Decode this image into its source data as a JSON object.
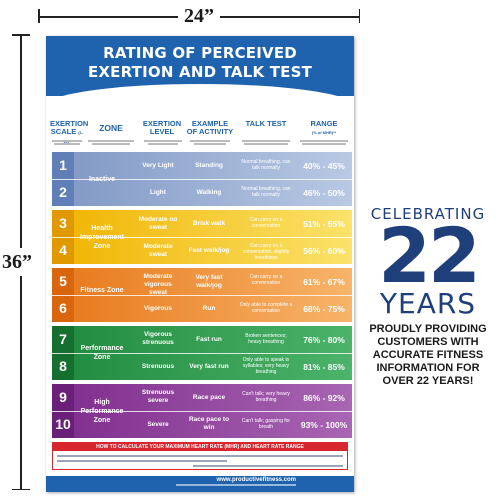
{
  "dimensions": {
    "width_label": "24”",
    "height_label": "36”"
  },
  "poster": {
    "title_line1": "RATING OF PERCEIVED",
    "title_line2": "EXERTION AND TALK TEST",
    "columns": {
      "scale": "EXERTION SCALE",
      "scale_note": "(1-10)*",
      "zone": "ZONE",
      "level": "EXERTION LEVEL",
      "activity": "EXAMPLE OF ACTIVITY",
      "talk": "TALK TEST",
      "range": "RANGE",
      "range_note": "(% of MHR)**"
    },
    "colors": {
      "inactive": "#8ea7cf",
      "health": "#f2c418",
      "fitness": "#ee8a22",
      "performance": "#2a9a4a",
      "high": "#8b3a96",
      "header": "#1f62ad",
      "hr_box": "#d7262e"
    },
    "rows": [
      {
        "scale": "1",
        "zone": "Inactive",
        "level": "Very Light",
        "activity": "Standing",
        "talk": "Normal breathing, can talk normally",
        "range": "40% - 45%"
      },
      {
        "scale": "2",
        "zone": "",
        "level": "Light",
        "activity": "Walking",
        "talk": "Normal breathing, can talk normally",
        "range": "46% - 50%"
      },
      {
        "scale": "3",
        "zone": "Health Improvement Zone",
        "level": "Moderate no sweat",
        "activity": "Brisk walk",
        "talk": "Can carry on a conversation",
        "range": "51% - 55%"
      },
      {
        "scale": "4",
        "zone": "",
        "level": "Moderate sweat",
        "activity": "Fast walk/jog",
        "talk": "Can carry on a conversation, slightly breathless",
        "range": "56% - 60%"
      },
      {
        "scale": "5",
        "zone": "Fitness Zone",
        "level": "Moderate vigorous sweat",
        "activity": "Very fast walk/jog",
        "talk": "Can carry on a conversation",
        "range": "61% - 67%"
      },
      {
        "scale": "6",
        "zone": "",
        "level": "Vigorous",
        "activity": "Run",
        "talk": "Only able to complete a conversation",
        "range": "68% - 75%"
      },
      {
        "scale": "7",
        "zone": "Performance Zone",
        "level": "Vigorous strenuous",
        "activity": "Fast run",
        "talk": "Broken sentences; heavy breathing",
        "range": "76% - 80%"
      },
      {
        "scale": "8",
        "zone": "",
        "level": "Strenuous",
        "activity": "Very fast run",
        "talk": "Only able to speak in syllables; very heavy breathing",
        "range": "81% - 85%"
      },
      {
        "scale": "9",
        "zone": "High Performance Zone",
        "level": "Strenuous severe",
        "activity": "Race pace",
        "talk": "Can't talk; very heavy breathing",
        "range": "86% - 92%"
      },
      {
        "scale": "10",
        "zone": "",
        "level": "Severe",
        "activity": "Race pace to win",
        "talk": "Can't talk; gasping for breath",
        "range": "93% - 100%"
      }
    ],
    "hr_title": "HOW TO CALCULATE YOUR MAXIMUM HEART RATE (MHR) AND HEART RATE RANGE",
    "footer_url": "www.productivefitness.com"
  },
  "promo": {
    "celebrating": "CELEBRATING",
    "number": "22",
    "years": "YEARS",
    "message": "PROUDLY PROVIDING CUSTOMERS WITH ACCURATE FITNESS INFORMATION FOR OVER 22 YEARS!"
  }
}
